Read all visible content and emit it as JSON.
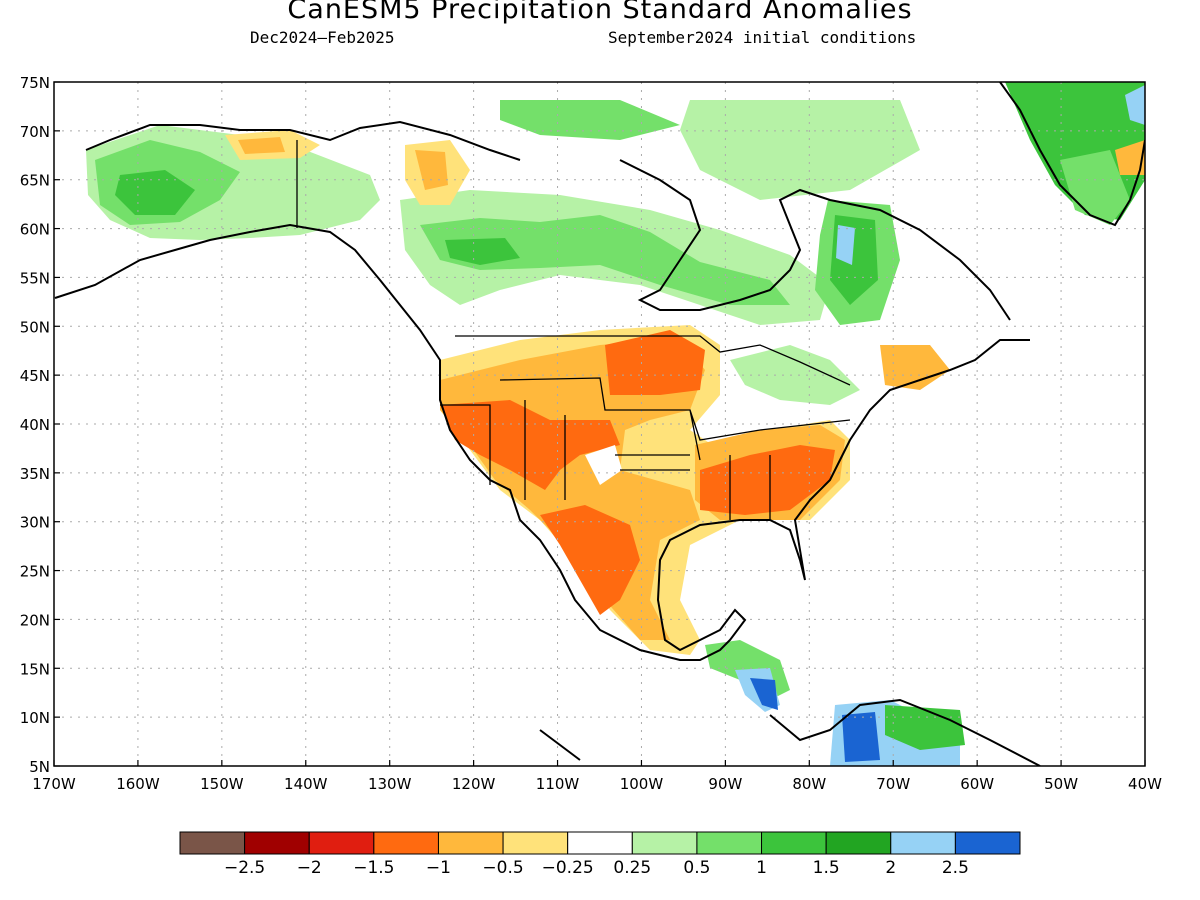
{
  "title": "CanESM5 Precipitation Standard Anomalies",
  "period": "Dec2024–Feb2025",
  "init": "September2024 initial conditions",
  "axes": {
    "lat_ticks": [
      "75N",
      "70N",
      "65N",
      "60N",
      "55N",
      "50N",
      "45N",
      "40N",
      "35N",
      "30N",
      "25N",
      "20N",
      "15N",
      "10N",
      "5N"
    ],
    "lon_ticks": [
      "170W",
      "160W",
      "150W",
      "140W",
      "130W",
      "120W",
      "110W",
      "100W",
      "90W",
      "80W",
      "70W",
      "60W",
      "50W",
      "40W"
    ]
  },
  "colorbar": {
    "colors": [
      "#7a5548",
      "#a00000",
      "#e01e10",
      "#ff6a10",
      "#ffb83c",
      "#ffe27a",
      "#ffffff",
      "#b6f2a6",
      "#74e06a",
      "#3cc43c",
      "#22a522",
      "#96d2f5",
      "#1a64d2"
    ],
    "labels": [
      "−2.5",
      "−2",
      "−1.5",
      "−1",
      "−0.5",
      "−0.25",
      "0.25",
      "0.5",
      "1",
      "1.5",
      "2",
      "2.5"
    ]
  }
}
